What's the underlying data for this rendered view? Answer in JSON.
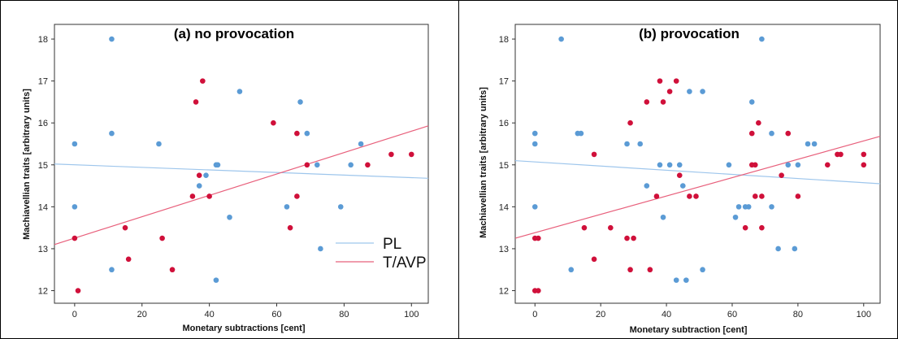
{
  "colors": {
    "PL": "#5b9bd5",
    "T/AVP": "#d0103a",
    "PL_line": "#9ec6ec",
    "T/AVP_line": "#e8607c"
  },
  "legend": {
    "items": [
      "PL",
      "T/AVP"
    ],
    "placement": "bottom-right of panel (a)"
  },
  "chart_data": [
    {
      "type": "scatter",
      "title": "(a) no provocation",
      "xlabel": "Monetary subtractions [cent]",
      "ylabel": "Machiavellian traits [arbitrary units]",
      "xlim": [
        -6,
        105
      ],
      "ylim": [
        11.7,
        18.35
      ],
      "xticks": [
        0,
        20,
        40,
        60,
        80,
        100
      ],
      "yticks": [
        12,
        13,
        14,
        15,
        16,
        17,
        18
      ],
      "grid": false,
      "series": [
        {
          "name": "PL",
          "points": [
            [
              0,
              15.5
            ],
            [
              0,
              14
            ],
            [
              11,
              18
            ],
            [
              11,
              15.75
            ],
            [
              11,
              12.5
            ],
            [
              25,
              15.5
            ],
            [
              37,
              14.5
            ],
            [
              39,
              14.75
            ],
            [
              42,
              15
            ],
            [
              42.5,
              15
            ],
            [
              42,
              12.25
            ],
            [
              46,
              13.75
            ],
            [
              49,
              16.75
            ],
            [
              63,
              14
            ],
            [
              67,
              16.5
            ],
            [
              69,
              15.75
            ],
            [
              72,
              15
            ],
            [
              73,
              13
            ],
            [
              79,
              14
            ],
            [
              82,
              15
            ],
            [
              85,
              15.5
            ]
          ],
          "fit": [
            [
              -6,
              15.02
            ],
            [
              105,
              14.68
            ]
          ]
        },
        {
          "name": "T/AVP",
          "points": [
            [
              0,
              13.25
            ],
            [
              1,
              12
            ],
            [
              15,
              13.5
            ],
            [
              16,
              12.75
            ],
            [
              26,
              13.25
            ],
            [
              29,
              12.5
            ],
            [
              35,
              14.25
            ],
            [
              36,
              16.5
            ],
            [
              37,
              14.75
            ],
            [
              38,
              17
            ],
            [
              40,
              14.25
            ],
            [
              59,
              16
            ],
            [
              64,
              13.5
            ],
            [
              66,
              15.75
            ],
            [
              66,
              14.25
            ],
            [
              69,
              15
            ],
            [
              87,
              15
            ],
            [
              94,
              15.25
            ],
            [
              100,
              15.25
            ]
          ],
          "fit": [
            [
              -6,
              13.1
            ],
            [
              105,
              15.93
            ]
          ]
        }
      ]
    },
    {
      "type": "scatter",
      "title": "(b) provocation",
      "xlabel": "Monetary subtraction [cent]",
      "ylabel": "Machiavellian traits [arbitrary units]",
      "xlim": [
        -6,
        105
      ],
      "ylim": [
        11.7,
        18.35
      ],
      "xticks": [
        0,
        20,
        40,
        60,
        80,
        100
      ],
      "yticks": [
        12,
        13,
        14,
        15,
        16,
        17,
        18
      ],
      "grid": false,
      "series": [
        {
          "name": "PL",
          "points": [
            [
              0,
              15.75
            ],
            [
              0,
              15.5
            ],
            [
              0,
              14
            ],
            [
              8,
              18
            ],
            [
              11,
              12.5
            ],
            [
              13,
              15.75
            ],
            [
              14,
              15.75
            ],
            [
              28,
              15.5
            ],
            [
              32,
              15.5
            ],
            [
              34,
              14.5
            ],
            [
              38,
              15
            ],
            [
              39,
              13.75
            ],
            [
              41,
              15
            ],
            [
              44,
              15
            ],
            [
              45,
              14.5
            ],
            [
              46,
              12.25
            ],
            [
              43,
              12.25
            ],
            [
              47,
              16.75
            ],
            [
              51,
              16.75
            ],
            [
              51,
              12.5
            ],
            [
              59,
              15
            ],
            [
              61,
              13.75
            ],
            [
              62,
              14
            ],
            [
              64,
              14
            ],
            [
              65,
              14
            ],
            [
              66,
              16.5
            ],
            [
              69,
              18
            ],
            [
              72,
              15.75
            ],
            [
              72,
              14
            ],
            [
              74,
              13
            ],
            [
              77,
              15
            ],
            [
              79,
              13
            ],
            [
              80,
              15
            ],
            [
              83,
              15.5
            ],
            [
              85,
              15.5
            ]
          ],
          "fit": [
            [
              -6,
              15.1
            ],
            [
              105,
              14.55
            ]
          ]
        },
        {
          "name": "T/AVP",
          "points": [
            [
              0,
              13.25
            ],
            [
              0,
              12
            ],
            [
              1,
              13.25
            ],
            [
              1,
              12
            ],
            [
              15,
              13.5
            ],
            [
              18,
              15.25
            ],
            [
              18,
              12.75
            ],
            [
              23,
              13.5
            ],
            [
              28,
              13.25
            ],
            [
              30,
              13.25
            ],
            [
              29,
              16
            ],
            [
              29,
              12.5
            ],
            [
              34,
              16.5
            ],
            [
              35,
              12.5
            ],
            [
              37,
              14.25
            ],
            [
              38,
              17
            ],
            [
              39,
              16.5
            ],
            [
              41,
              16.75
            ],
            [
              43,
              17
            ],
            [
              44,
              14.75
            ],
            [
              47,
              14.25
            ],
            [
              49,
              14.25
            ],
            [
              64,
              13.5
            ],
            [
              66,
              15.75
            ],
            [
              66,
              15
            ],
            [
              67,
              15
            ],
            [
              67,
              14.25
            ],
            [
              68,
              16
            ],
            [
              69,
              14.25
            ],
            [
              69,
              13.5
            ],
            [
              75,
              14.75
            ],
            [
              77,
              15.75
            ],
            [
              80,
              14.25
            ],
            [
              89,
              15
            ],
            [
              92,
              15.25
            ],
            [
              93,
              15.25
            ],
            [
              100,
              15.25
            ],
            [
              100,
              15
            ]
          ],
          "fit": [
            [
              -6,
              13.25
            ],
            [
              105,
              15.68
            ]
          ]
        }
      ]
    }
  ]
}
